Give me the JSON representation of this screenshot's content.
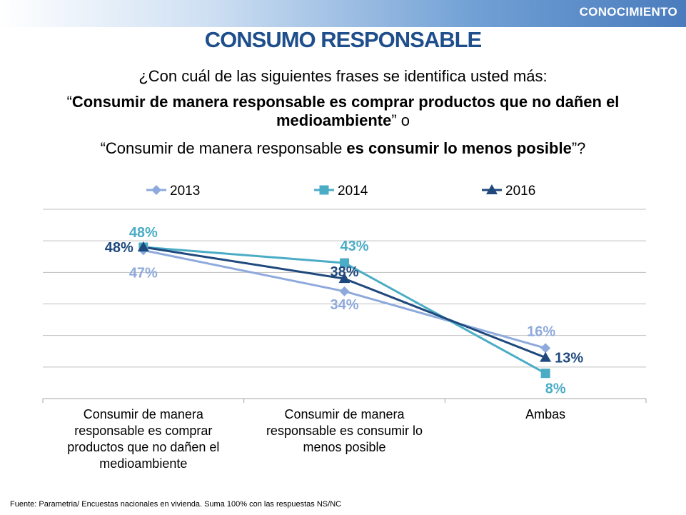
{
  "header": {
    "section": "CONOCIMIENTO",
    "title": "CONSUMO RESPONSABLE"
  },
  "question": {
    "intro": "¿Con cuál de las siguientes frases se identifica usted más:",
    "phrase1_open_quote": "“",
    "phrase1_bold": "Consumir de manera  responsable es comprar productos que no dañen el medioambiente",
    "phrase1_close": "” o",
    "phrase2_plain": "“Consumir de manera responsable ",
    "phrase2_bold": "es consumir lo menos posible",
    "phrase2_close": "”?"
  },
  "chart_data": {
    "type": "line",
    "categories": [
      "Consumir de manera responsable es comprar productos que no dañen el medioambiente",
      "Consumir de manera responsable es consumir lo menos posible",
      "Ambas"
    ],
    "category_lines": [
      [
        "Consumir de manera",
        "responsable es comprar",
        "productos que no dañen el",
        "medioambiente"
      ],
      [
        "Consumir de manera",
        "responsable es consumir lo",
        "menos posible"
      ],
      [
        "Ambas"
      ]
    ],
    "series": [
      {
        "name": "2013",
        "values": [
          47,
          34,
          16
        ],
        "labels": [
          "47%",
          "34%",
          "16%"
        ],
        "color": "#8eaadc",
        "marker": "diamond"
      },
      {
        "name": "2014",
        "values": [
          48,
          43,
          8
        ],
        "labels": [
          "48%",
          "43%",
          "8%"
        ],
        "color": "#4bacc6",
        "marker": "square"
      },
      {
        "name": "2016",
        "values": [
          48,
          38,
          13
        ],
        "labels": [
          "48%",
          "38%",
          "13%"
        ],
        "color": "#1f497d",
        "marker": "triangle"
      }
    ],
    "ylim": [
      0,
      60
    ],
    "grid": true,
    "legend_position": "top"
  },
  "footer": {
    "source": "Fuente: Parametria/ Encuestas nacionales en vivienda. Suma 100% con las respuestas NS/NC"
  }
}
